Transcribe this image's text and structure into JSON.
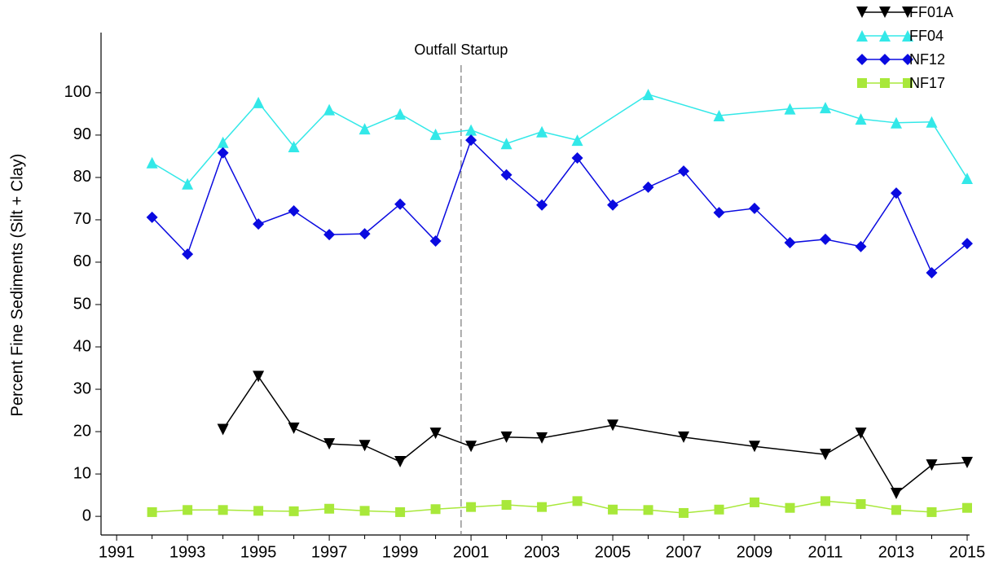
{
  "chart_data": {
    "type": "line",
    "ylabel": "Percent Fine Sediments (Silt + Clay)",
    "xlim": [
      1990.56,
      2015
    ],
    "ylim": [
      -4.4,
      114.2
    ],
    "xticks": [
      1991,
      1993,
      1995,
      1997,
      1999,
      2001,
      2003,
      2005,
      2007,
      2009,
      2011,
      2013,
      2015
    ],
    "x_minor_ticks": [
      1992,
      1994,
      1996,
      1998,
      2000,
      2002,
      2004,
      2006,
      2008,
      2010,
      2012,
      2014
    ],
    "yticks": [
      0,
      10,
      20,
      30,
      40,
      50,
      60,
      70,
      80,
      90,
      100
    ],
    "legend": "top-right",
    "annotation": {
      "text": "Outfall Startup",
      "x": 2000.72
    },
    "series": [
      {
        "name": "FF01A",
        "color": "#000000",
        "marker": "triangle-down",
        "x": [
          1994,
          1995,
          1996,
          1997,
          1998,
          1999,
          2000,
          2001,
          2002,
          2003,
          2005,
          2007,
          2009,
          2011,
          2012,
          2013,
          2014,
          2015
        ],
        "values": [
          20.5,
          33,
          20.8,
          17.1,
          16.7,
          12.9,
          19.6,
          16.5,
          18.7,
          18.5,
          21.5,
          18.7,
          16.5,
          14.6,
          19.6,
          5.4,
          12.1,
          12.7
        ]
      },
      {
        "name": "FF04",
        "color": "#33e8e8",
        "marker": "triangle-up",
        "x": [
          1992,
          1993,
          1994,
          1995,
          1996,
          1997,
          1998,
          1999,
          2000,
          2001,
          2002,
          2003,
          2004,
          2006,
          2008,
          2010,
          2011,
          2012,
          2013,
          2014,
          2015
        ],
        "values": [
          83.5,
          78.5,
          88.3,
          97.7,
          87.3,
          96,
          91.5,
          95,
          90.2,
          91.2,
          88,
          90.8,
          88.8,
          99.6,
          94.6,
          96.2,
          96.5,
          93.8,
          92.9,
          93.1,
          79.8
        ]
      },
      {
        "name": "NF12",
        "color": "#0a0ae0",
        "marker": "diamond",
        "x": [
          1992,
          1993,
          1994,
          1995,
          1996,
          1997,
          1998,
          1999,
          2000,
          2001,
          2002,
          2003,
          2004,
          2005,
          2006,
          2007,
          2008,
          2009,
          2010,
          2011,
          2012,
          2013,
          2014,
          2015
        ],
        "values": [
          70.6,
          61.9,
          85.8,
          69,
          72.1,
          66.5,
          66.7,
          73.7,
          65,
          88.8,
          80.6,
          73.5,
          84.6,
          73.5,
          77.7,
          81.5,
          71.7,
          72.7,
          64.6,
          65.4,
          63.7,
          76.3,
          57.5,
          64.4
        ]
      },
      {
        "name": "NF17",
        "color": "#a8e83a",
        "marker": "square",
        "x": [
          1992,
          1993,
          1994,
          1995,
          1996,
          1997,
          1998,
          1999,
          2000,
          2001,
          2002,
          2003,
          2004,
          2005,
          2006,
          2007,
          2008,
          2009,
          2010,
          2011,
          2012,
          2013,
          2014,
          2015
        ],
        "values": [
          1.0,
          1.5,
          1.5,
          1.3,
          1.2,
          1.8,
          1.3,
          1.0,
          1.7,
          2.2,
          2.7,
          2.2,
          3.6,
          1.6,
          1.5,
          0.8,
          1.6,
          3.3,
          2.0,
          3.6,
          2.9,
          1.5,
          1.0,
          2.0
        ]
      }
    ]
  }
}
